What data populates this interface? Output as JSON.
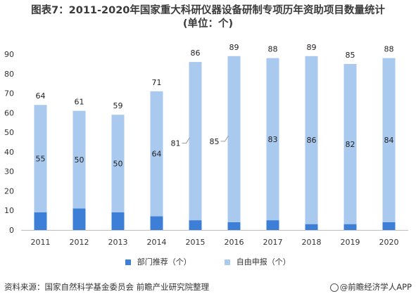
{
  "header": {
    "title_line1": "图表7：2011-2020年国家重大科研仪器设备研制专项历年资助项目数量统计",
    "title_line2": "(单位：个)"
  },
  "footer": {
    "source": "资料来源：国家自然科学基金委员会 前瞻产业研究院整理",
    "brand": "@前瞻经济学人APP"
  },
  "chart_data": {
    "type": "bar",
    "stacked": true,
    "categories": [
      "2011",
      "2012",
      "2013",
      "2014",
      "2015",
      "2016",
      "2017",
      "2018",
      "2019",
      "2020"
    ],
    "series": [
      {
        "name": "部门推荐（个）",
        "values": [
          9,
          11,
          9,
          7,
          5,
          4,
          5,
          3,
          3,
          4
        ],
        "color": "#3d7fd6"
      },
      {
        "name": "自由申报（个）",
        "values": [
          55,
          50,
          50,
          64,
          81,
          85,
          83,
          86,
          82,
          84
        ],
        "color": "#a9c9ee"
      }
    ],
    "totals": [
      64,
      61,
      59,
      71,
      86,
      89,
      88,
      89,
      85,
      88
    ],
    "ylim": [
      0,
      90
    ],
    "yticks": [
      0,
      10,
      20,
      30,
      40,
      50,
      60,
      70,
      80,
      90
    ],
    "legend_position": "bottom",
    "grid": false
  }
}
